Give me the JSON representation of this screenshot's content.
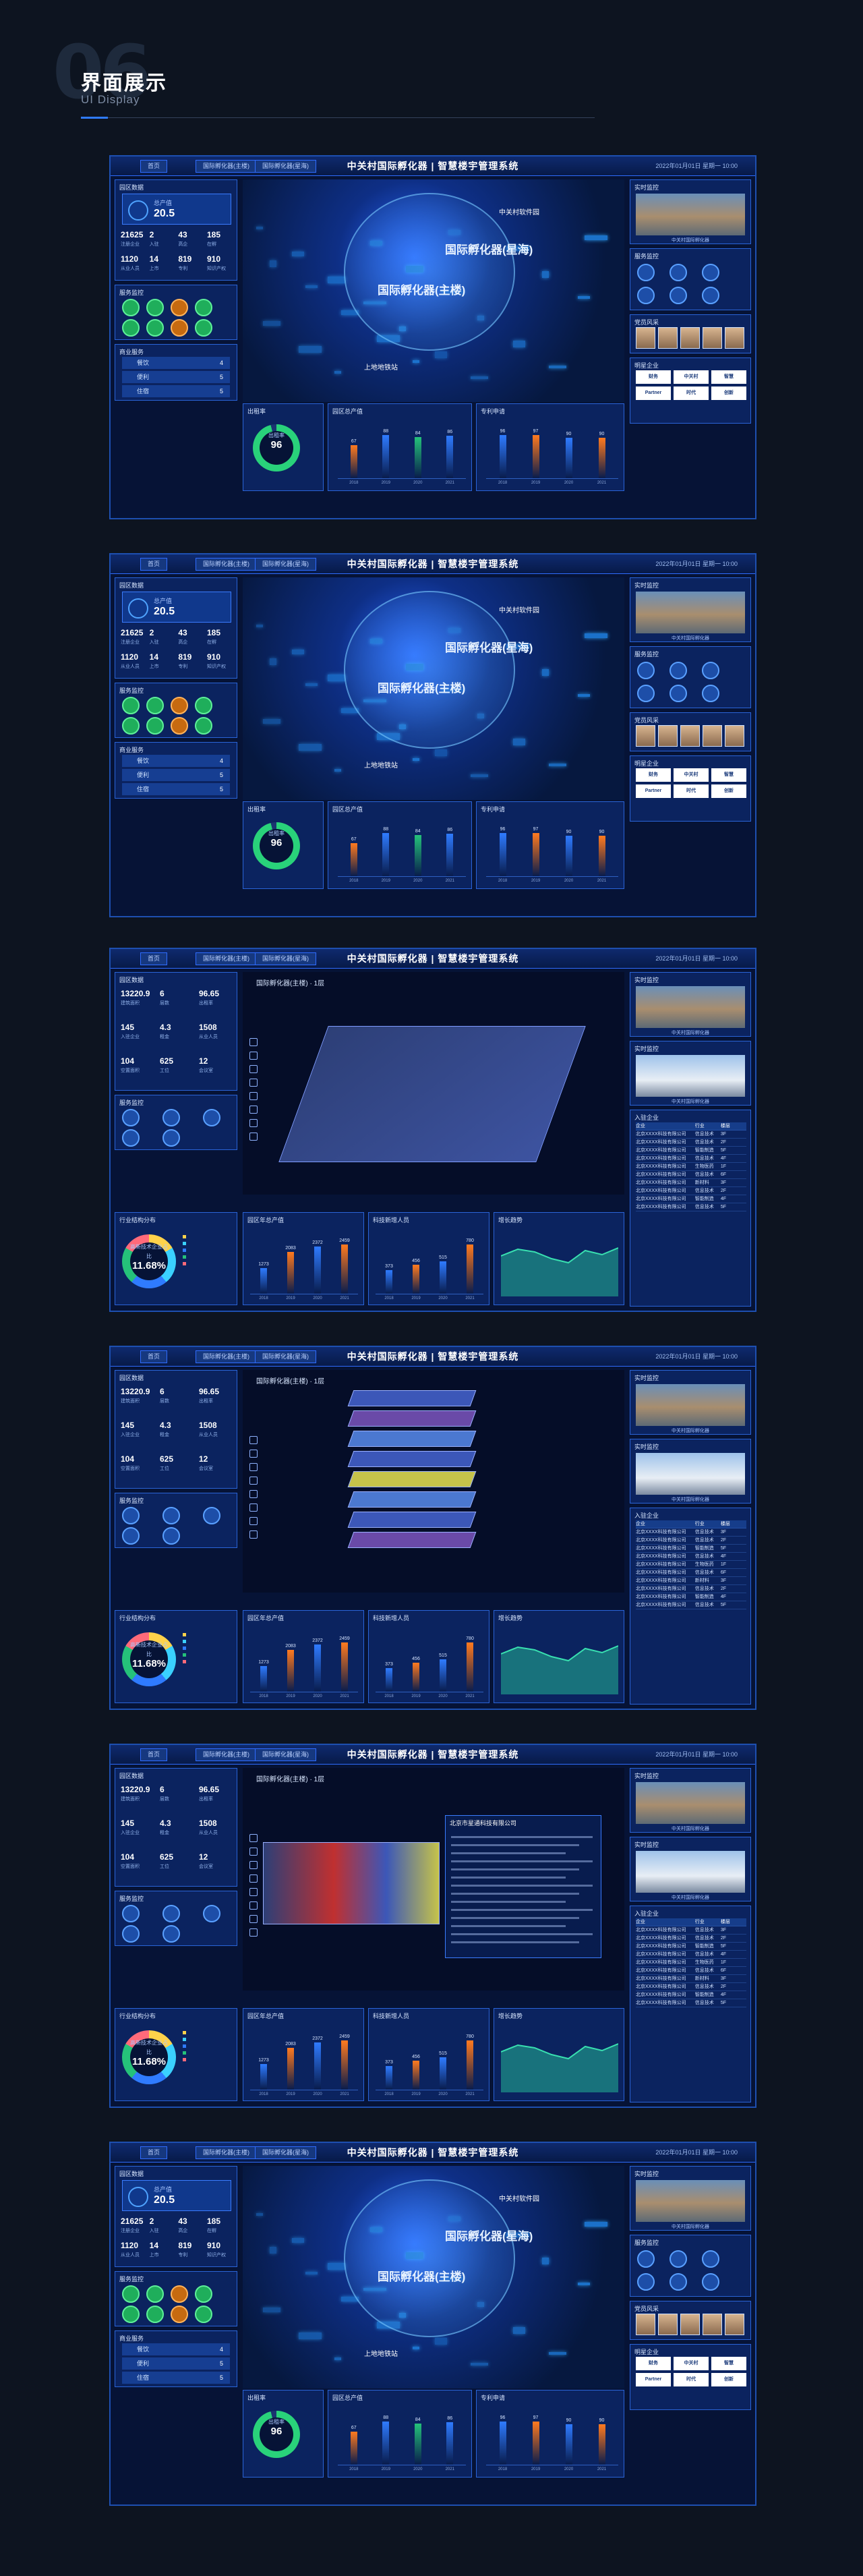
{
  "section": {
    "number": "06",
    "title": "界面展示",
    "subtitle": "UI Display"
  },
  "app": {
    "title": "中关村国际孵化器 | 智慧楼宇管理系统",
    "tabs": [
      "首页",
      "国际孵化器(主楼)",
      "国际孵化器(星海)"
    ],
    "datetime": "2022年01月01日 星期一 10:00"
  },
  "kpis": {
    "output_label": "总产值",
    "output_value": "20.5",
    "output_unit": "亿",
    "row1": [
      {
        "v": "21625",
        "l": "注册企业"
      },
      {
        "v": "2",
        "l": "入驻"
      },
      {
        "v": "43",
        "l": "高企"
      },
      {
        "v": "185",
        "l": "在孵"
      }
    ],
    "row2": [
      {
        "v": "1120",
        "l": "从业人员"
      },
      {
        "v": "14",
        "l": "上市"
      },
      {
        "v": "819",
        "l": "专利"
      },
      {
        "v": "910",
        "l": "知识产权"
      }
    ]
  },
  "floor_kpis": {
    "row1": [
      {
        "v": "13220.9",
        "l": "建筑面积"
      },
      {
        "v": "6",
        "l": "层数"
      },
      {
        "v": "96.65",
        "l": "出租率"
      }
    ],
    "row2": [
      {
        "v": "145",
        "l": "入驻企业"
      },
      {
        "v": "4.3",
        "l": "租金"
      },
      {
        "v": "1508",
        "l": "从业人员"
      }
    ],
    "row3": [
      {
        "v": "104",
        "l": "空置面积"
      },
      {
        "v": "625",
        "l": "工位"
      },
      {
        "v": "12",
        "l": "会议室"
      }
    ]
  },
  "panels": {
    "overview": "园区数据",
    "services": "服务监控",
    "business": "商业服务",
    "occupancy": "出租率",
    "industry": "园区总产值",
    "patents": "专利申请",
    "industry_ratio": "行业结构分布",
    "annual_output": "园区年总产值",
    "talent": "科技新增人员",
    "trend": "增长趋势",
    "video": "实时监控",
    "people": "党员风采",
    "companies": "明星企业",
    "list": "入驻企业"
  },
  "occupancy": {
    "value": "96",
    "label": "出租率"
  },
  "ratio": {
    "value": "11.68%",
    "label": "高新技术企业占比"
  },
  "business_items": [
    {
      "name": "餐饮",
      "value": "4"
    },
    {
      "name": "便利",
      "value": "5"
    },
    {
      "name": "住宿",
      "value": "5"
    }
  ],
  "chart_output": {
    "values": [
      67,
      88,
      84,
      86
    ],
    "labels": [
      "67",
      "88",
      "84",
      "86"
    ],
    "years": [
      "2018",
      "2019",
      "2020",
      "2021"
    ]
  },
  "chart_patents": {
    "values": [
      96,
      97,
      90,
      90
    ],
    "labels": [
      "96",
      "97",
      "90",
      "90"
    ],
    "years": [
      "2018",
      "2019",
      "2020",
      "2021"
    ]
  },
  "chart_annual": {
    "values": [
      1273,
      2083,
      2372,
      2459
    ],
    "labels": [
      "1273",
      "2083",
      "2372",
      "2459"
    ],
    "years": [
      "2018",
      "2019",
      "2020",
      "2021"
    ]
  },
  "chart_talent": {
    "values": [
      373,
      456,
      515,
      780
    ],
    "labels": [
      "373",
      "456",
      "515",
      "780"
    ],
    "years": [
      "2018",
      "2019",
      "2020",
      "2021"
    ]
  },
  "city_tags": [
    "国际孵化器(星海)",
    "国际孵化器(主楼)",
    "中关村软件园",
    "上地地铁站"
  ],
  "floor_title": "国际孵化器(主楼) · 1层",
  "company_popup_title": "北京市星通科技有限公司",
  "video_caption": "中关村国际孵化器",
  "company_list": [
    [
      "北京XXXX科技有限公司",
      "信息技术",
      "3F"
    ],
    [
      "北京XXXX科技有限公司",
      "信息技术",
      "2F"
    ],
    [
      "北京XXXX科技有限公司",
      "智能制造",
      "5F"
    ],
    [
      "北京XXXX科技有限公司",
      "信息技术",
      "4F"
    ],
    [
      "北京XXXX科技有限公司",
      "生物医药",
      "1F"
    ],
    [
      "北京XXXX科技有限公司",
      "信息技术",
      "6F"
    ],
    [
      "北京XXXX科技有限公司",
      "新材料",
      "3F"
    ],
    [
      "北京XXXX科技有限公司",
      "信息技术",
      "2F"
    ],
    [
      "北京XXXX科技有限公司",
      "智能制造",
      "4F"
    ],
    [
      "北京XXXX科技有限公司",
      "信息技术",
      "5F"
    ]
  ],
  "list_headers": [
    "企业",
    "行业",
    "楼层"
  ],
  "logos": [
    "财务",
    "中关村",
    "智慧",
    "Partner",
    "时代",
    "创新"
  ]
}
